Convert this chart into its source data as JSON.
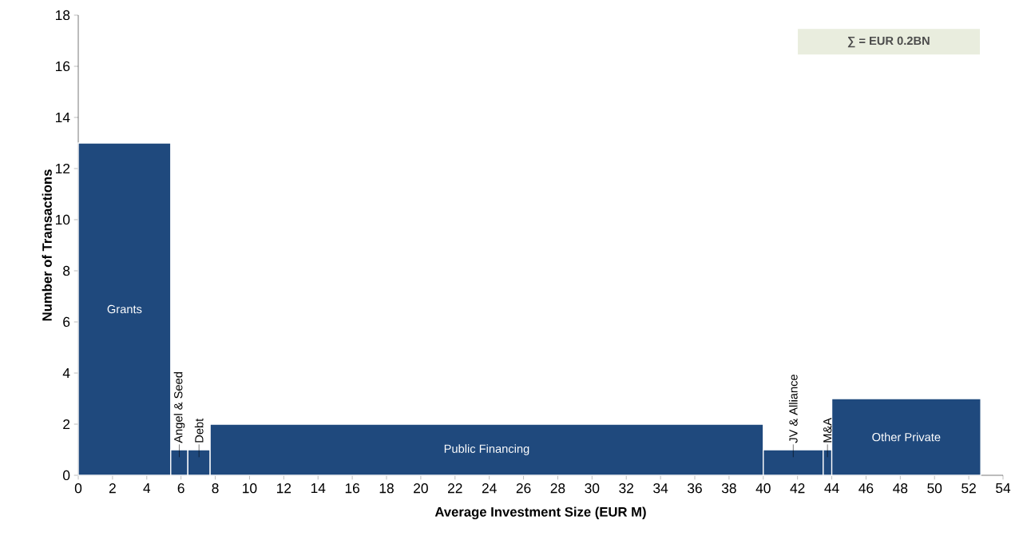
{
  "chart_data": {
    "type": "histogram",
    "bins": [
      0,
      5.4,
      6.4,
      7.7,
      40,
      43.5,
      44,
      52.7
    ],
    "values": [
      13,
      1,
      1,
      2,
      1,
      1,
      3
    ],
    "color": "#1f497d",
    "xlabel": "Average Investment Size (EUR M)",
    "ylabel": "Number of Transactions",
    "xlim": [
      0,
      54
    ],
    "xticks": [
      0,
      2,
      4,
      6,
      8,
      10,
      12,
      14,
      16,
      18,
      20,
      22,
      24,
      26,
      28,
      30,
      32,
      34,
      36,
      38,
      40,
      42,
      44,
      46,
      48,
      50,
      52,
      54
    ],
    "ylim": [
      0,
      18
    ],
    "yticks": [
      0,
      2,
      4,
      6,
      8,
      10,
      12,
      14,
      16,
      18
    ],
    "annotations": [
      "Grants",
      "Angel & Seed",
      "Debt",
      "Public Financing",
      "JV & Alliance",
      "M&A",
      "Other Private",
      "∑ = EUR 0.2BN"
    ]
  }
}
